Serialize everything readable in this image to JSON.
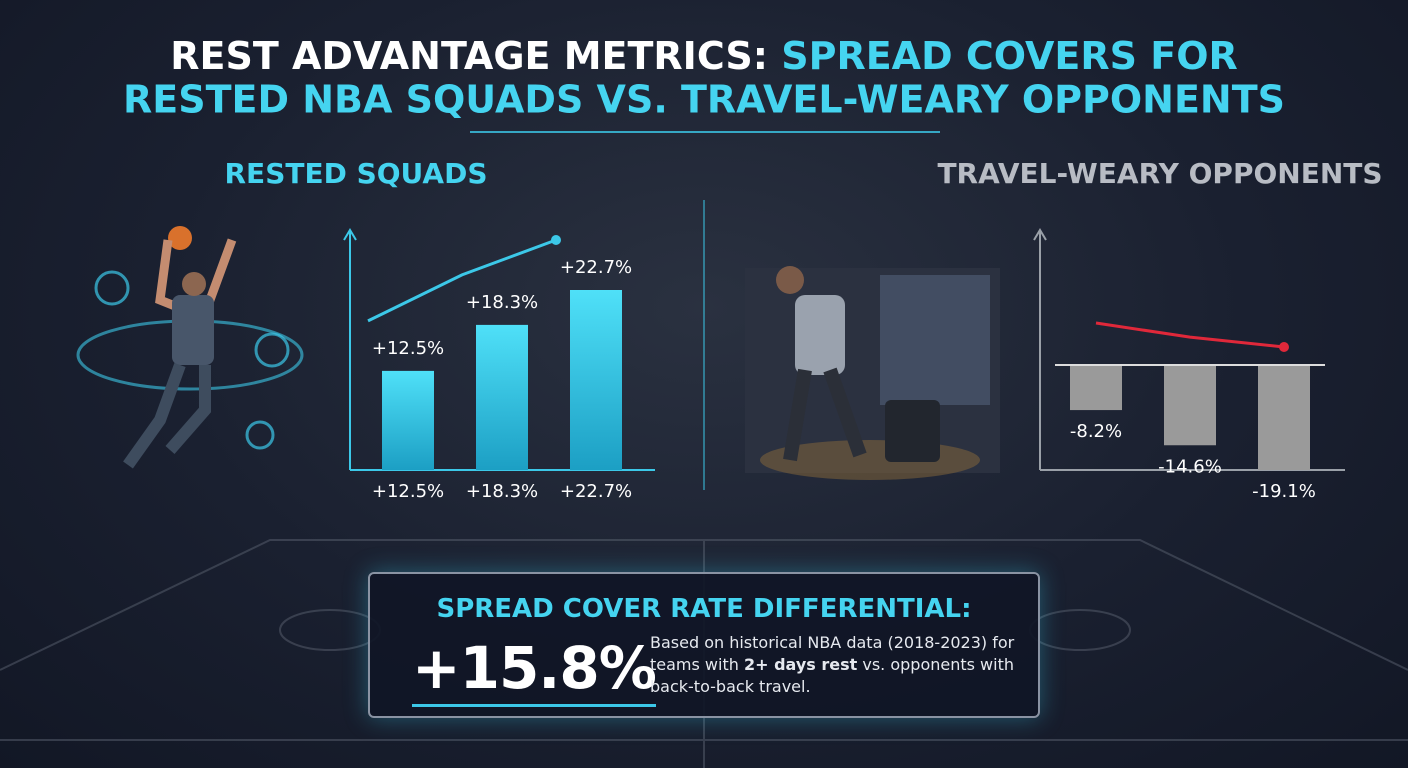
{
  "header": {
    "title_lead": "REST ADVANTAGE METRICS:",
    "title_rest": "SPREAD COVERS FOR",
    "title_line2": "RESTED NBA SQUADS VS. TRAVEL-WEARY OPPONENTS"
  },
  "chart_data": [
    {
      "type": "bar",
      "title": "RESTED SQUADS",
      "values": [
        12.5,
        18.3,
        22.7
      ],
      "value_labels": [
        "+12.5%",
        "+18.3%",
        "+22.7%"
      ],
      "color": "#3ad0ee"
    },
    {
      "type": "bar",
      "title": "TRAVEL-WEARY OPPONENTS",
      "values": [
        -8.2,
        -14.6,
        -19.1
      ],
      "value_labels": [
        "-8.2%",
        "-14.6%",
        "-19.1%"
      ],
      "color": "#9a9a9a"
    }
  ],
  "callout": {
    "heading": "SPREAD COVER RATE DIFFERENTIAL:",
    "value": "+15.8%",
    "desc_1": "Based on historical NBA data (2018-2023) for teams with ",
    "desc_bold": "2+ days rest",
    "desc_2": " vs. opponents with back-to-back travel."
  }
}
